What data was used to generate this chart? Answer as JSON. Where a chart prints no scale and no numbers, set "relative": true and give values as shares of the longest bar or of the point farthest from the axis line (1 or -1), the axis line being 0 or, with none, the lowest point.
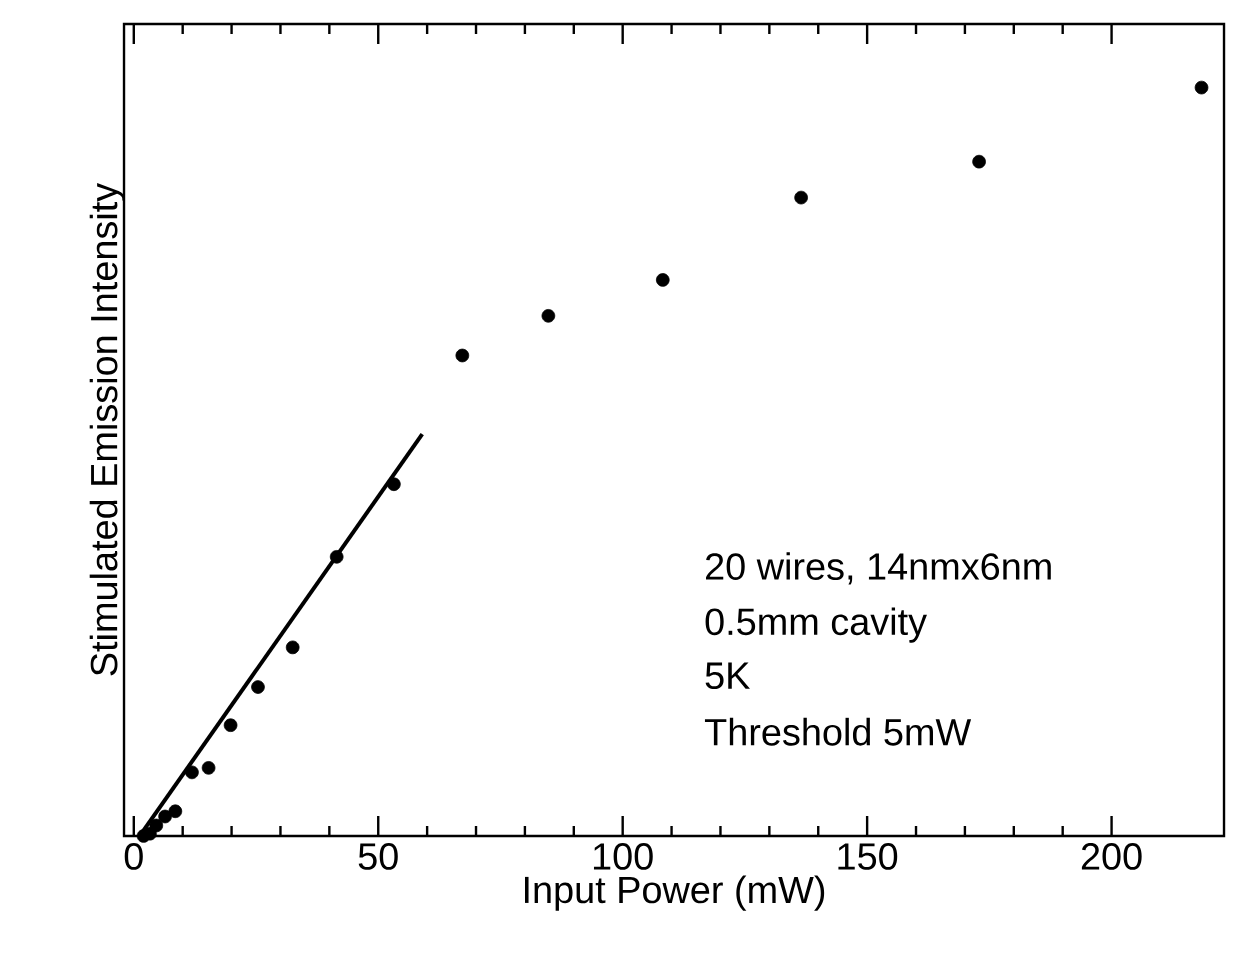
{
  "chart_data": {
    "type": "scatter",
    "xlabel": "Input Power (mW)",
    "ylabel": "Stimulated Emission Intensity",
    "relative": true,
    "xlim": [
      -2,
      223
    ],
    "xticks": [
      0,
      50,
      100,
      150,
      200
    ],
    "annotations": [
      "20 wires, 14nmx6nm",
      "0.5mm cavity",
      "5K",
      "Threshold 5mW"
    ],
    "series": [
      {
        "color": "#000000",
        "marker": "circle",
        "x": [
          2.0,
          3.3,
          4.6,
          6.4,
          8.5,
          11.9,
          15.3,
          19.8,
          25.4,
          32.5,
          41.5,
          53.2,
          67.2,
          84.8,
          108.2,
          136.5,
          172.9,
          218.4
        ],
        "values": [
          0,
          0.003,
          0.014,
          0.026,
          0.033,
          0.085,
          0.091,
          0.148,
          0.199,
          0.252,
          0.373,
          0.47,
          0.642,
          0.695,
          0.743,
          0.853,
          0.901,
          1
        ]
      },
      {
        "type": "line",
        "marker": "none",
        "color": "#000000",
        "x": [
          1.2,
          59
        ],
        "values": [
          0,
          0.537
        ]
      }
    ]
  }
}
